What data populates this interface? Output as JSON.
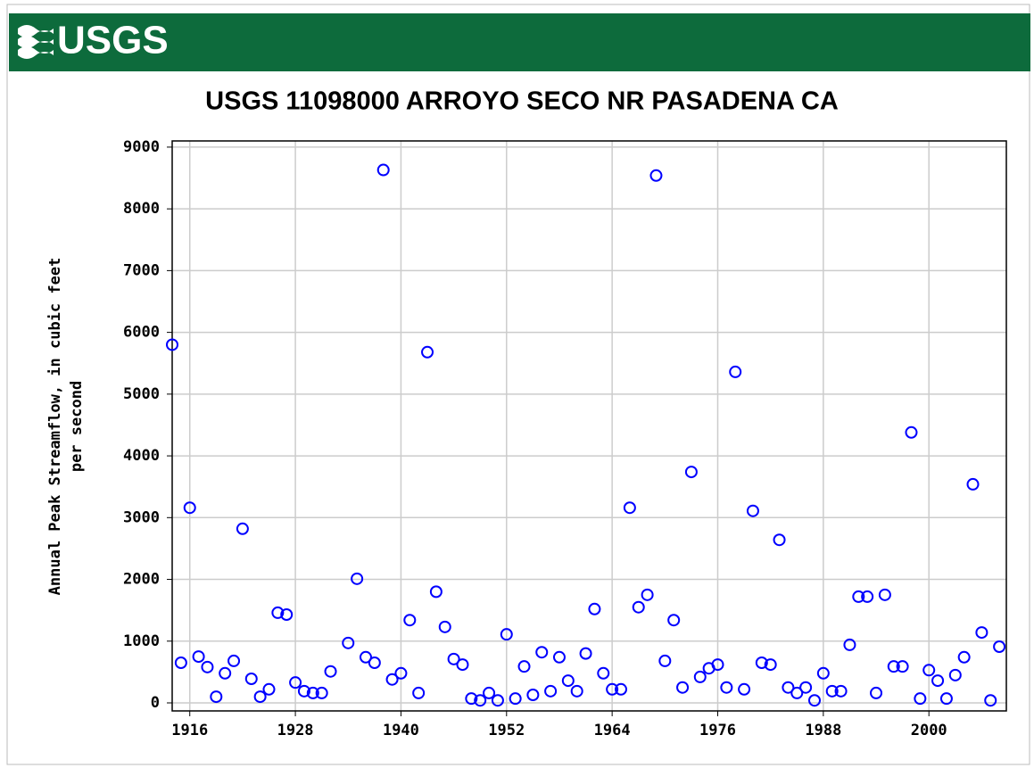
{
  "header": {
    "logo": "USGS"
  },
  "chart_data": {
    "type": "scatter",
    "title": "USGS 11098000 ARROYO SECO NR PASADENA CA",
    "y_label": [
      "Annual Peak Streamflow, in cubic feet",
      "per second"
    ],
    "color": "#0000ff",
    "grid": true,
    "xlim": [
      1914,
      2008.8
    ],
    "ylim": [
      -130,
      9100
    ],
    "xticks": [
      1916,
      1928,
      1940,
      1952,
      1964,
      1976,
      1988,
      2000
    ],
    "yticks": [
      0,
      1000,
      2000,
      3000,
      4000,
      5000,
      6000,
      7000,
      8000,
      9000
    ],
    "x": [
      1914,
      1915,
      1916,
      1917,
      1918,
      1919,
      1920,
      1921,
      1922,
      1923,
      1924,
      1925,
      1926,
      1927,
      1928,
      1929,
      1930,
      1931,
      1932,
      1934,
      1935,
      1936,
      1937,
      1938,
      1939,
      1940,
      1941,
      1942,
      1943,
      1944,
      1945,
      1946,
      1947,
      1948,
      1949,
      1950,
      1951,
      1952,
      1953,
      1954,
      1955,
      1956,
      1957,
      1958,
      1959,
      1960,
      1961,
      1962,
      1963,
      1964,
      1965,
      1966,
      1967,
      1968,
      1969,
      1970,
      1971,
      1972,
      1973,
      1974,
      1975,
      1976,
      1977,
      1978,
      1979,
      1980,
      1981,
      1982,
      1983,
      1984,
      1985,
      1986,
      1987,
      1988,
      1989,
      1990,
      1991,
      1992,
      1993,
      1994,
      1995,
      1996,
      1997,
      1998,
      1999,
      2000,
      2001,
      2002,
      2003,
      2004,
      2005,
      2006,
      2007,
      2008
    ],
    "values": [
      5800,
      650,
      3160,
      750,
      580,
      100,
      480,
      680,
      2820,
      390,
      100,
      220,
      1460,
      1430,
      330,
      190,
      160,
      160,
      510,
      970,
      2010,
      740,
      650,
      8630,
      380,
      480,
      1340,
      160,
      5680,
      1800,
      1230,
      710,
      620,
      70,
      40,
      160,
      40,
      1110,
      70,
      590,
      130,
      820,
      190,
      740,
      360,
      190,
      800,
      1520,
      480,
      220,
      220,
      3160,
      1550,
      1750,
      8540,
      680,
      1340,
      250,
      3740,
      420,
      560,
      620,
      250,
      5360,
      220,
      3110,
      650,
      620,
      2640,
      250,
      160,
      250,
      40,
      480,
      190,
      190,
      940,
      1720,
      1720,
      160,
      1750,
      590,
      590,
      4380,
      70,
      530,
      360,
      70,
      450,
      740,
      3540,
      1140,
      40,
      910
    ]
  }
}
